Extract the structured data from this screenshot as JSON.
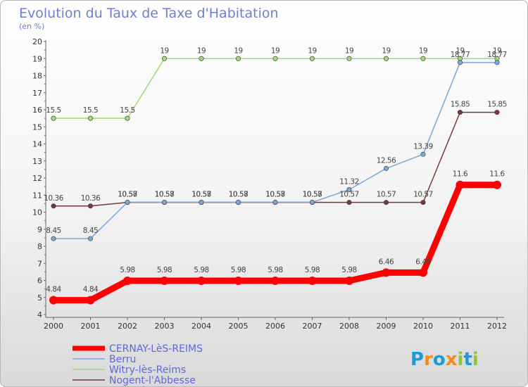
{
  "chart_data": {
    "type": "line",
    "title": "Evolution du Taux de Taxe d'Habitation",
    "subtitle": "(en %)",
    "x": [
      "2000",
      "2001",
      "2002",
      "2003",
      "2004",
      "2005",
      "2006",
      "2007",
      "2008",
      "2009",
      "2010",
      "2011",
      "2012"
    ],
    "ylim": [
      4,
      20
    ],
    "yticks": [
      "4",
      "5",
      "6",
      "7",
      "8",
      "9",
      "10",
      "11",
      "12",
      "13",
      "14",
      "15",
      "16",
      "17",
      "18",
      "19",
      "20"
    ],
    "grid": false,
    "legend_position": "bottom-left",
    "series": [
      {
        "name": "CERNAY-LèS-REIMS",
        "color": "#ff0000",
        "values": [
          4.84,
          4.84,
          5.98,
          5.98,
          5.98,
          5.98,
          5.98,
          5.98,
          5.98,
          6.46,
          6.46,
          11.6,
          11.6
        ],
        "labels": [
          "4.84",
          "4.84",
          "5.98",
          "5.98",
          "5.98",
          "5.98",
          "5.98",
          "5.98",
          "5.98",
          "6.46",
          "6.46",
          "11.6",
          "11.6"
        ]
      },
      {
        "name": "Berru",
        "color": "#7ea6d9",
        "values": [
          8.45,
          8.45,
          10.58,
          10.58,
          10.58,
          10.58,
          10.58,
          10.58,
          11.32,
          12.56,
          13.39,
          18.77,
          18.77
        ],
        "labels": [
          "8.45",
          "8.45",
          "10.58",
          "10.58",
          "10.58",
          "10.58",
          "10.58",
          "10.58",
          "11.32",
          "12.56",
          "13.39",
          "18.77",
          "18.77"
        ]
      },
      {
        "name": "Witry-lès-Reims",
        "color": "#9fdc73",
        "values": [
          15.5,
          15.5,
          15.5,
          19,
          19,
          19,
          19,
          19,
          19,
          19,
          19,
          19,
          19
        ],
        "labels": [
          "15.5",
          "15.5",
          "15.5",
          "19",
          "19",
          "19",
          "19",
          "19",
          "19",
          "19",
          "19",
          "19",
          "19"
        ]
      },
      {
        "name": "Nogent-l'Abbesse",
        "color": "#7a3838",
        "values": [
          10.36,
          10.36,
          10.57,
          10.57,
          10.57,
          10.57,
          10.57,
          10.57,
          10.57,
          10.57,
          10.57,
          15.85,
          15.85
        ],
        "labels": [
          "10.36",
          "10.36",
          "10.57",
          "10.57",
          "10.57",
          "10.57",
          "10.57",
          "10.57",
          "10.57",
          "10.57",
          "10.57",
          "15.85",
          "15.85"
        ]
      }
    ]
  },
  "logo": {
    "text": "Proxiti",
    "letters": [
      "P",
      "r",
      "o",
      "x",
      "i",
      "t",
      "i"
    ],
    "colors": [
      "#1e9bd7",
      "#f28c1c",
      "#1e9bd7",
      "#f28c1c",
      "#8cc63f",
      "#1e9bd7",
      "#8cc63f"
    ]
  }
}
